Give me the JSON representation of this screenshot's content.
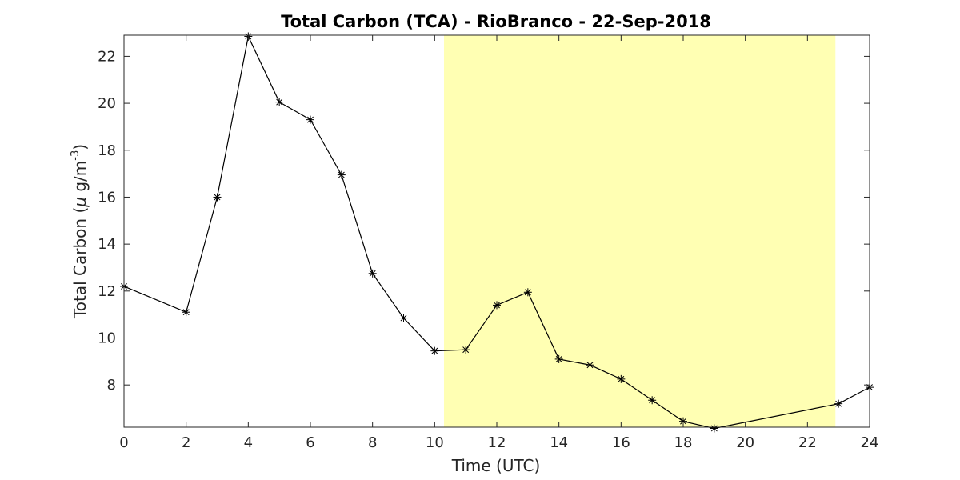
{
  "chart_data": {
    "type": "line",
    "title": "Total Carbon (TCA) - RioBranco - 22-Sep-2018",
    "xlabel": "Time (UTC)",
    "ylabel": {
      "prefix": "Total Carbon (",
      "mu": "μ",
      "unit": " g/m",
      "exponent": "-3",
      "suffix": ")"
    },
    "xlim": [
      0,
      24
    ],
    "ylim": [
      6.2,
      22.9
    ],
    "xticks": [
      0,
      2,
      4,
      6,
      8,
      10,
      12,
      14,
      16,
      18,
      20,
      22,
      24
    ],
    "yticks": [
      8,
      10,
      12,
      14,
      16,
      18,
      20,
      22
    ],
    "shaded_region": {
      "x": [
        10.3,
        22.9
      ],
      "color": "#ffffb3"
    },
    "series": [
      {
        "marker": "asterisk",
        "color": "#000000",
        "x": [
          0,
          2,
          3,
          4,
          5,
          6,
          7,
          8,
          9,
          10,
          11,
          12,
          13,
          14,
          15,
          16,
          17,
          18,
          19,
          23,
          24
        ],
        "y": [
          12.2,
          11.1,
          16.0,
          22.85,
          20.05,
          19.3,
          16.95,
          12.75,
          10.85,
          9.45,
          9.5,
          11.4,
          11.95,
          9.1,
          8.85,
          8.25,
          7.35,
          6.45,
          6.15,
          7.2,
          7.9
        ]
      }
    ],
    "grid": false,
    "legend": "none"
  }
}
